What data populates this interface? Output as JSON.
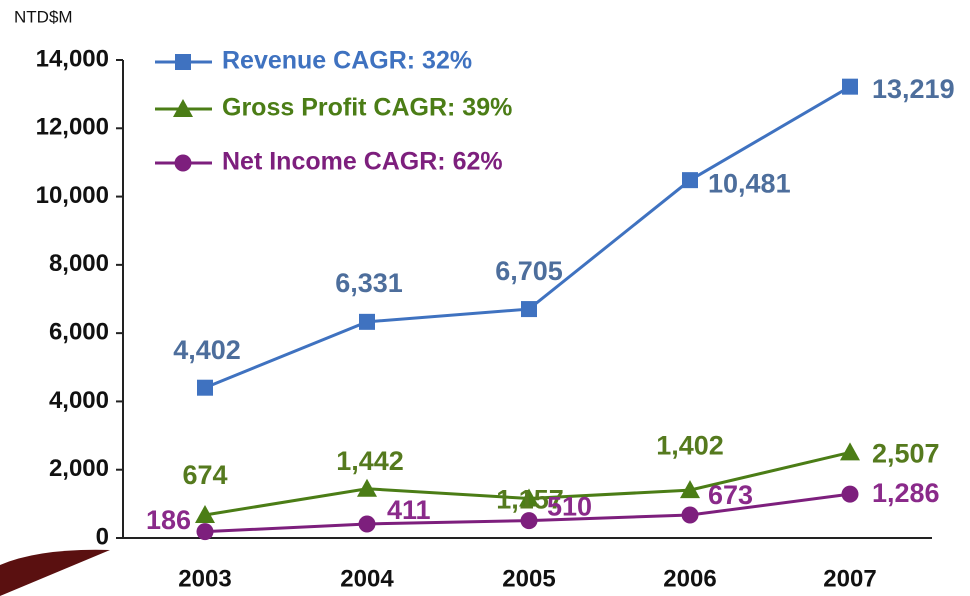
{
  "chart_data": {
    "type": "line",
    "y_label": "NTD$M",
    "categories": [
      "2003",
      "2004",
      "2005",
      "2006",
      "2007"
    ],
    "series": [
      {
        "name": "Revenue CAGR: 32%",
        "color": "#3f72c0",
        "marker": "square",
        "label_color": "#4d6e9c",
        "values": [
          4402,
          6331,
          6705,
          10481,
          13219
        ],
        "value_labels": [
          "4,402",
          "6,331",
          "6,705",
          "10,481",
          "13,219"
        ]
      },
      {
        "name": "Gross Profit CAGR: 39%",
        "color": "#4b7d16",
        "marker": "triangle",
        "label_color": "#557a1e",
        "values": [
          674,
          1442,
          1157,
          1402,
          2507
        ],
        "value_labels": [
          "674",
          "1,442",
          "1,157",
          "1,402",
          "2,507"
        ]
      },
      {
        "name": "Net Income CAGR: 62%",
        "color": "#7d1f7d",
        "marker": "circle",
        "label_color": "#8a2a8a",
        "values": [
          186,
          411,
          510,
          673,
          1286
        ],
        "value_labels": [
          "186",
          "411",
          "510",
          "673",
          "1,286"
        ]
      }
    ],
    "ylim": [
      0,
      14000
    ],
    "yticks": [
      0,
      {
        "value": 2000,
        "label": "2,000"
      },
      {
        "value": 4000,
        "label": "4,000"
      },
      {
        "value": 6000,
        "label": "6,000"
      },
      {
        "value": 8000,
        "label": "8,000"
      },
      {
        "value": 10000,
        "label": "10,000"
      },
      {
        "value": 12000,
        "label": "12,000"
      },
      {
        "value": 14000,
        "label": "14,000"
      }
    ],
    "grid": false,
    "legend": "top-left"
  }
}
